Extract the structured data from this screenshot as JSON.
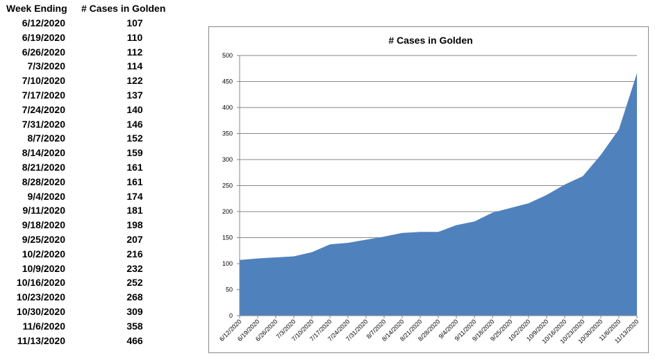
{
  "table": {
    "header_week": "Week Ending",
    "header_cases": "# Cases in Golden"
  },
  "chart_data": {
    "type": "area",
    "title": "# Cases in Golden",
    "xlabel": "",
    "ylabel": "",
    "ylim": [
      0,
      500
    ],
    "yticks": [
      0,
      50,
      100,
      150,
      200,
      250,
      300,
      350,
      400,
      450,
      500
    ],
    "grid": true,
    "legend": "none",
    "fill_color": "#4f81bd",
    "categories": [
      "6/12/2020",
      "6/19/2020",
      "6/26/2020",
      "7/3/2020",
      "7/10/2020",
      "7/17/2020",
      "7/24/2020",
      "7/31/2020",
      "8/7/2020",
      "8/14/2020",
      "8/21/2020",
      "8/28/2020",
      "9/4/2020",
      "9/11/2020",
      "9/18/2020",
      "9/25/2020",
      "10/2/2020",
      "10/9/2020",
      "10/16/2020",
      "10/23/2020",
      "10/30/2020",
      "11/6/2020",
      "11/13/2020"
    ],
    "values": [
      107,
      110,
      112,
      114,
      122,
      137,
      140,
      146,
      152,
      159,
      161,
      161,
      174,
      181,
      198,
      207,
      216,
      232,
      252,
      268,
      309,
      358,
      466
    ]
  }
}
